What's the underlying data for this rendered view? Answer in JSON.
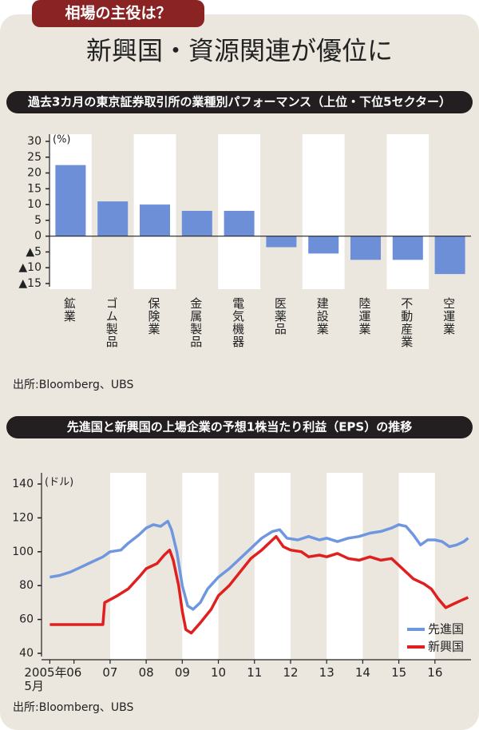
{
  "header": {
    "tag": "相場の主役は？",
    "title": "新興国・資源関連が優位に"
  },
  "chart_data": [
    {
      "type": "bar",
      "title": "過去3カ月の東京証券取引所の業種別パフォーマンス（上位・下位5セクター）",
      "unit": "(%)",
      "categories": [
        "鉱業",
        "ゴム製品",
        "保険業",
        "金属製品",
        "電気機器",
        "医薬品",
        "建設業",
        "陸運業",
        "不動産業",
        "空運業"
      ],
      "values": [
        22.5,
        11,
        10,
        8,
        8,
        -3.5,
        -5.5,
        -7.5,
        -7.5,
        -12
      ],
      "color": "#6d8fd8",
      "ylim": [
        -15,
        30
      ],
      "yticks": [
        30,
        25,
        20,
        15,
        10,
        5,
        0,
        {
          "value": -5,
          "label": "▲5"
        },
        {
          "value": -10,
          "label": "▲10"
        },
        {
          "value": -15,
          "label": "▲15"
        }
      ],
      "source": "出所:Bloomberg、UBS"
    },
    {
      "type": "line",
      "title": "先進国と新興国の上場企業の予想1株当たり利益（EPS）の推移",
      "unit": "(ドル)",
      "xlim": [
        2005.1,
        2017.0
      ],
      "xticks": [
        {
          "value": 2005.33,
          "label": "2005年\n5月"
        },
        {
          "value": 2006,
          "label": "06"
        },
        {
          "value": 2007,
          "label": "07"
        },
        {
          "value": 2008,
          "label": "08"
        },
        {
          "value": 2009,
          "label": "09"
        },
        {
          "value": 2010,
          "label": "10"
        },
        {
          "value": 2011,
          "label": "11"
        },
        {
          "value": 2012,
          "label": "12"
        },
        {
          "value": 2013,
          "label": "13"
        },
        {
          "value": 2014,
          "label": "14"
        },
        {
          "value": 2015,
          "label": "15"
        },
        {
          "value": 2016,
          "label": "16"
        }
      ],
      "ylim": [
        40,
        140
      ],
      "yticks": [
        140,
        120,
        100,
        80,
        60,
        40
      ],
      "legend": "lower right",
      "series": [
        {
          "name": "先進国",
          "color": "#6f97e0",
          "x": [
            2005.33,
            2005.6,
            2005.9,
            2006.2,
            2006.5,
            2006.8,
            2007.0,
            2007.3,
            2007.5,
            2007.8,
            2008.0,
            2008.2,
            2008.4,
            2008.6,
            2008.7,
            2008.85,
            2009.0,
            2009.15,
            2009.3,
            2009.5,
            2009.7,
            2010.0,
            2010.3,
            2010.6,
            2010.9,
            2011.2,
            2011.5,
            2011.7,
            2011.9,
            2012.2,
            2012.5,
            2012.8,
            2013.0,
            2013.3,
            2013.6,
            2013.9,
            2014.2,
            2014.5,
            2014.8,
            2015.0,
            2015.2,
            2015.4,
            2015.6,
            2015.8,
            2016.0,
            2016.2,
            2016.4,
            2016.6,
            2016.8,
            2016.92
          ],
          "values": [
            85,
            86,
            88,
            91,
            94,
            97,
            100,
            101,
            105,
            110,
            114,
            116,
            115,
            118,
            113,
            100,
            80,
            68,
            66,
            70,
            78,
            85,
            90,
            96,
            102,
            108,
            112,
            113,
            108,
            107,
            109,
            107,
            108,
            106,
            108,
            109,
            111,
            112,
            114,
            116,
            115,
            110,
            104,
            107,
            107,
            106,
            103,
            104,
            106,
            108
          ]
        },
        {
          "name": "新興国",
          "color": "#e0201e",
          "x": [
            2005.33,
            2006.0,
            2006.8,
            2006.85,
            2007.2,
            2007.5,
            2007.8,
            2008.0,
            2008.3,
            2008.5,
            2008.65,
            2008.75,
            2008.9,
            2009.0,
            2009.1,
            2009.25,
            2009.5,
            2009.8,
            2010.0,
            2010.3,
            2010.6,
            2010.9,
            2011.2,
            2011.5,
            2011.6,
            2011.8,
            2012.0,
            2012.3,
            2012.5,
            2012.8,
            2013.0,
            2013.3,
            2013.6,
            2013.9,
            2014.2,
            2014.5,
            2014.8,
            2015.0,
            2015.2,
            2015.4,
            2015.7,
            2015.9,
            2016.1,
            2016.3,
            2016.5,
            2016.7,
            2016.92
          ],
          "values": [
            57,
            57,
            57,
            70,
            74,
            78,
            85,
            90,
            93,
            98,
            101,
            95,
            80,
            65,
            54,
            52,
            58,
            66,
            74,
            80,
            88,
            96,
            101,
            107,
            109,
            103,
            101,
            100,
            97,
            98,
            97,
            99,
            96,
            95,
            97,
            95,
            96,
            92,
            88,
            84,
            81,
            78,
            72,
            67,
            69,
            71,
            73
          ]
        }
      ],
      "source": "出所:Bloomberg、UBS"
    }
  ]
}
